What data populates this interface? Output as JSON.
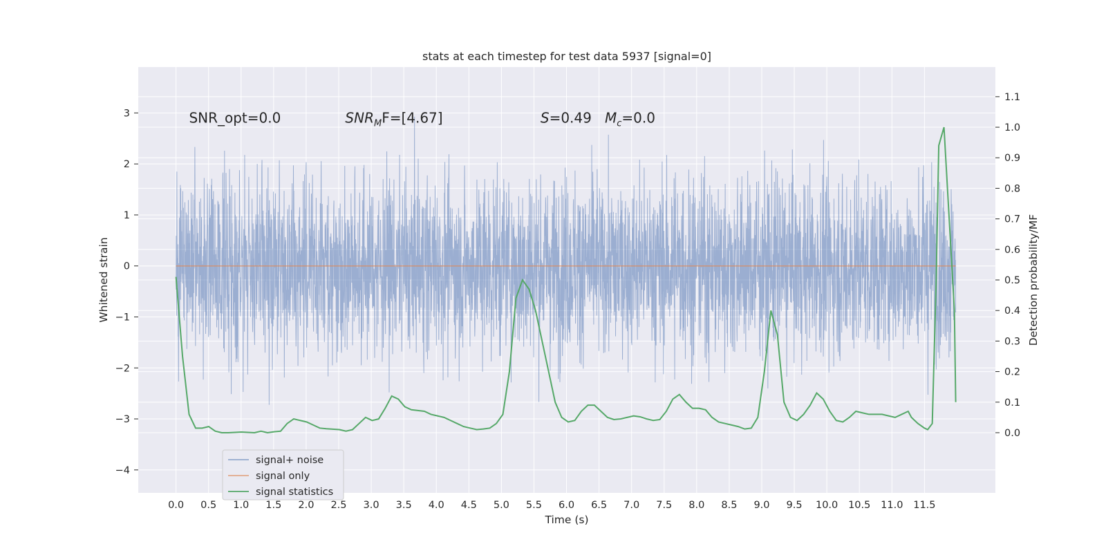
{
  "chart_data": {
    "type": "line",
    "title": "stats at each timestep for test data 5937 [signal=0]",
    "xlabel": "Time (s)",
    "ylabel": "Whitened strain",
    "ylabel_right": "Detection probability/MF",
    "xlim": [
      -0.58,
      12.59
    ],
    "ylim": [
      -4.45,
      3.9
    ],
    "ylim_right": [
      -0.197,
      1.197
    ],
    "x_ticks": [
      "0.0",
      "0.5",
      "1.0",
      "1.5",
      "2.0",
      "2.5",
      "3.0",
      "3.5",
      "4.0",
      "4.5",
      "5.0",
      "5.5",
      "6.0",
      "6.5",
      "7.0",
      "7.5",
      "8.0",
      "8.5",
      "9.0",
      "9.5",
      "10.0",
      "10.5",
      "11.0",
      "11.5"
    ],
    "y_ticks": [
      "3",
      "2",
      "1",
      "0",
      "−1",
      "−2",
      "−3",
      "−4"
    ],
    "y_ticks_right": [
      "0.0",
      "0.1",
      "0.2",
      "0.3",
      "0.4",
      "0.5",
      "0.6",
      "0.7",
      "0.8",
      "0.9",
      "1.0",
      "1.1"
    ],
    "grid": true,
    "legend_position": "lower-left",
    "annotations": [
      {
        "text": "SNR_opt=0.0",
        "x": 0.2,
        "y": 2.85
      },
      {
        "pre": "",
        "italic": "SNR",
        "sub": "M",
        "post": "F=[4.67]",
        "x": 2.6,
        "y": 2.85
      },
      {
        "pre": "",
        "italic": "S",
        "sub": "",
        "post": "=0.49   ",
        "italic2": "M",
        "sub2": "c",
        "post2": "=0.0",
        "x": 5.6,
        "y": 2.85
      }
    ],
    "series": [
      {
        "name": "signal+ noise",
        "color": "#4c72b0",
        "axis": "left",
        "noise_sigma": 0.95,
        "x_range": [
          0.0,
          11.98
        ]
      },
      {
        "name": "signal only",
        "color": "#dd8452",
        "axis": "left",
        "x": [
          0.0,
          11.98
        ],
        "y": [
          0.0,
          0.0
        ]
      },
      {
        "name": "signal statistics",
        "color": "#55a868",
        "axis": "right",
        "points": [
          [
            0.0,
            0.51
          ],
          [
            0.1,
            0.25
          ],
          [
            0.2,
            0.06
          ],
          [
            0.3,
            0.015
          ],
          [
            0.4,
            0.015
          ],
          [
            0.5,
            0.02
          ],
          [
            0.6,
            0.005
          ],
          [
            0.7,
            0.0
          ],
          [
            0.8,
            0.0
          ],
          [
            1.0,
            0.002
          ],
          [
            1.2,
            0.0
          ],
          [
            1.3,
            0.005
          ],
          [
            1.4,
            0.0
          ],
          [
            1.5,
            0.003
          ],
          [
            1.6,
            0.005
          ],
          [
            1.7,
            0.03
          ],
          [
            1.8,
            0.045
          ],
          [
            1.9,
            0.04
          ],
          [
            2.0,
            0.035
          ],
          [
            2.1,
            0.025
          ],
          [
            2.2,
            0.015
          ],
          [
            2.3,
            0.013
          ],
          [
            2.5,
            0.01
          ],
          [
            2.6,
            0.005
          ],
          [
            2.7,
            0.01
          ],
          [
            2.8,
            0.03
          ],
          [
            2.9,
            0.05
          ],
          [
            3.0,
            0.04
          ],
          [
            3.1,
            0.045
          ],
          [
            3.2,
            0.08
          ],
          [
            3.3,
            0.12
          ],
          [
            3.4,
            0.11
          ],
          [
            3.5,
            0.085
          ],
          [
            3.6,
            0.075
          ],
          [
            3.8,
            0.07
          ],
          [
            3.9,
            0.06
          ],
          [
            4.0,
            0.055
          ],
          [
            4.1,
            0.05
          ],
          [
            4.2,
            0.04
          ],
          [
            4.3,
            0.03
          ],
          [
            4.4,
            0.02
          ],
          [
            4.5,
            0.015
          ],
          [
            4.6,
            0.01
          ],
          [
            4.7,
            0.012
          ],
          [
            4.8,
            0.015
          ],
          [
            4.9,
            0.03
          ],
          [
            5.0,
            0.06
          ],
          [
            5.1,
            0.2
          ],
          [
            5.2,
            0.44
          ],
          [
            5.3,
            0.5
          ],
          [
            5.4,
            0.47
          ],
          [
            5.5,
            0.4
          ],
          [
            5.6,
            0.3
          ],
          [
            5.7,
            0.2
          ],
          [
            5.8,
            0.1
          ],
          [
            5.9,
            0.05
          ],
          [
            6.0,
            0.035
          ],
          [
            6.1,
            0.04
          ],
          [
            6.2,
            0.07
          ],
          [
            6.3,
            0.09
          ],
          [
            6.4,
            0.09
          ],
          [
            6.5,
            0.07
          ],
          [
            6.6,
            0.05
          ],
          [
            6.7,
            0.043
          ],
          [
            6.8,
            0.045
          ],
          [
            6.9,
            0.05
          ],
          [
            7.0,
            0.055
          ],
          [
            7.1,
            0.052
          ],
          [
            7.2,
            0.045
          ],
          [
            7.3,
            0.04
          ],
          [
            7.4,
            0.043
          ],
          [
            7.5,
            0.07
          ],
          [
            7.6,
            0.11
          ],
          [
            7.7,
            0.125
          ],
          [
            7.8,
            0.1
          ],
          [
            7.9,
            0.08
          ],
          [
            8.0,
            0.08
          ],
          [
            8.1,
            0.075
          ],
          [
            8.2,
            0.05
          ],
          [
            8.3,
            0.035
          ],
          [
            8.4,
            0.03
          ],
          [
            8.5,
            0.025
          ],
          [
            8.6,
            0.02
          ],
          [
            8.7,
            0.012
          ],
          [
            8.8,
            0.015
          ],
          [
            8.9,
            0.05
          ],
          [
            9.0,
            0.2
          ],
          [
            9.1,
            0.4
          ],
          [
            9.2,
            0.32
          ],
          [
            9.3,
            0.1
          ],
          [
            9.4,
            0.05
          ],
          [
            9.5,
            0.04
          ],
          [
            9.6,
            0.06
          ],
          [
            9.7,
            0.09
          ],
          [
            9.8,
            0.13
          ],
          [
            9.9,
            0.11
          ],
          [
            10.0,
            0.07
          ],
          [
            10.1,
            0.04
          ],
          [
            10.2,
            0.035
          ],
          [
            10.3,
            0.05
          ],
          [
            10.4,
            0.07
          ],
          [
            10.5,
            0.065
          ],
          [
            10.6,
            0.06
          ],
          [
            10.7,
            0.06
          ],
          [
            10.8,
            0.06
          ],
          [
            10.9,
            0.055
          ],
          [
            11.0,
            0.05
          ],
          [
            11.1,
            0.06
          ],
          [
            11.2,
            0.07
          ]
        ],
        "points_rescaled_note": ""
      }
    ]
  }
}
